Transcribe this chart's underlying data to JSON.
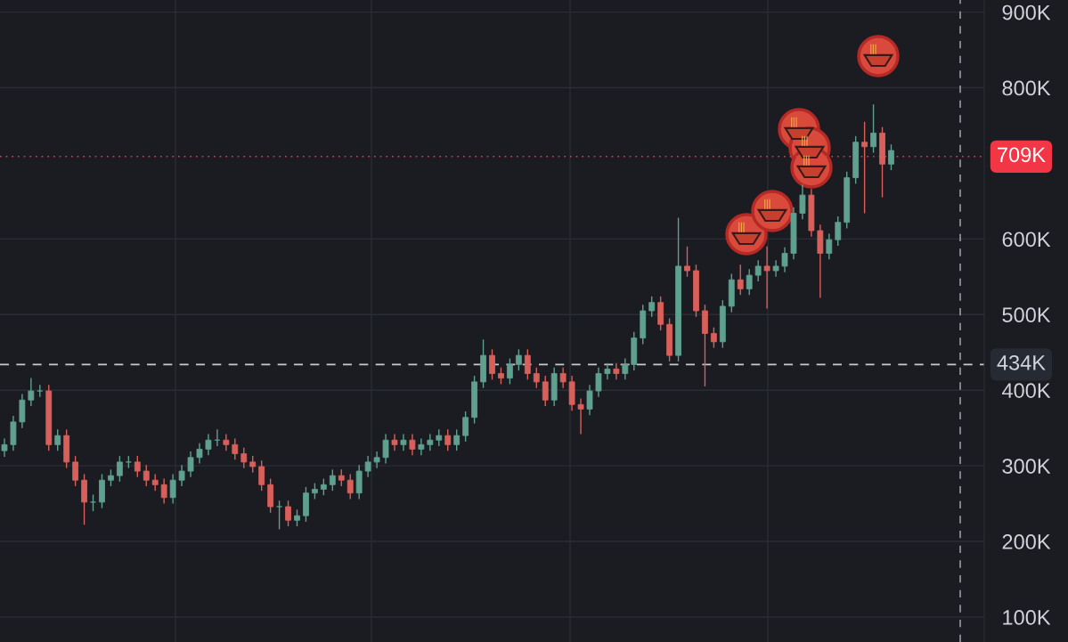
{
  "chart_data": {
    "type": "candlestick",
    "categories": [
      null,
      null,
      null,
      null,
      null,
      null,
      null,
      null,
      null,
      null,
      null,
      null,
      null,
      null,
      null,
      null,
      null,
      null,
      null,
      null,
      null,
      null,
      null,
      null,
      null,
      null,
      null,
      null,
      null,
      null,
      null,
      null,
      null,
      null,
      null,
      null,
      null,
      null,
      null,
      null,
      null,
      null,
      null,
      null,
      null,
      null,
      null,
      null,
      null,
      null,
      null,
      null,
      null,
      null,
      null,
      null,
      null,
      null,
      null,
      null,
      null,
      null,
      null,
      null,
      null,
      null,
      null,
      null,
      null,
      null,
      null,
      null,
      null,
      null,
      null,
      null,
      null,
      null,
      null,
      null,
      null,
      null,
      null,
      null,
      null,
      null,
      null,
      null,
      null,
      null,
      null,
      null,
      null,
      null,
      null,
      null,
      null,
      null,
      null,
      null,
      null,
      null,
      null,
      null,
      null,
      null,
      null,
      null,
      null,
      null,
      null
    ],
    "ohlc": [
      [
        320,
        336,
        312,
        328
      ],
      [
        328,
        366,
        320,
        358
      ],
      [
        358,
        395,
        350,
        387
      ],
      [
        387,
        416,
        379,
        399
      ],
      [
        399,
        407,
        391,
        399
      ],
      [
        399,
        407,
        320,
        328
      ],
      [
        328,
        348,
        320,
        340
      ],
      [
        340,
        348,
        297,
        305
      ],
      [
        305,
        313,
        273,
        281
      ],
      [
        281,
        289,
        222,
        252
      ],
      [
        252,
        262,
        240,
        252
      ],
      [
        252,
        289,
        244,
        281
      ],
      [
        281,
        295,
        273,
        287
      ],
      [
        287,
        313,
        279,
        305
      ],
      [
        305,
        313,
        297,
        305
      ],
      [
        305,
        313,
        285,
        293
      ],
      [
        293,
        301,
        273,
        281
      ],
      [
        281,
        289,
        267,
        275
      ],
      [
        275,
        283,
        250,
        258
      ],
      [
        258,
        289,
        250,
        281
      ],
      [
        281,
        301,
        273,
        293
      ],
      [
        293,
        319,
        285,
        311
      ],
      [
        311,
        330,
        303,
        322
      ],
      [
        322,
        342,
        314,
        334
      ],
      [
        334,
        348,
        326,
        334
      ],
      [
        334,
        342,
        320,
        328
      ],
      [
        328,
        336,
        308,
        316
      ],
      [
        316,
        324,
        297,
        305
      ],
      [
        305,
        313,
        291,
        299
      ],
      [
        299,
        307,
        267,
        275
      ],
      [
        275,
        283,
        238,
        246
      ],
      [
        246,
        254,
        216,
        246
      ],
      [
        246,
        254,
        220,
        228
      ],
      [
        228,
        242,
        220,
        234
      ],
      [
        234,
        272,
        226,
        264
      ],
      [
        264,
        277,
        256,
        269
      ],
      [
        269,
        283,
        261,
        275
      ],
      [
        275,
        295,
        267,
        287
      ],
      [
        287,
        295,
        273,
        281
      ],
      [
        281,
        289,
        256,
        264
      ],
      [
        264,
        301,
        256,
        293
      ],
      [
        293,
        313,
        285,
        305
      ],
      [
        305,
        319,
        297,
        311
      ],
      [
        311,
        342,
        303,
        334
      ],
      [
        334,
        342,
        320,
        328
      ],
      [
        328,
        342,
        320,
        334
      ],
      [
        334,
        342,
        314,
        322
      ],
      [
        322,
        336,
        314,
        328
      ],
      [
        328,
        342,
        320,
        334
      ],
      [
        334,
        348,
        326,
        340
      ],
      [
        340,
        348,
        320,
        328
      ],
      [
        328,
        348,
        320,
        340
      ],
      [
        340,
        372,
        332,
        364
      ],
      [
        364,
        419,
        356,
        411
      ],
      [
        411,
        467,
        403,
        446
      ],
      [
        446,
        454,
        414,
        422
      ],
      [
        422,
        430,
        408,
        416
      ],
      [
        416,
        442,
        408,
        434
      ],
      [
        434,
        454,
        426,
        446
      ],
      [
        446,
        454,
        414,
        422
      ],
      [
        422,
        430,
        403,
        411
      ],
      [
        411,
        419,
        379,
        387
      ],
      [
        387,
        430,
        379,
        422
      ],
      [
        422,
        430,
        403,
        411
      ],
      [
        411,
        419,
        373,
        381
      ],
      [
        381,
        389,
        342,
        375
      ],
      [
        375,
        407,
        367,
        399
      ],
      [
        399,
        430,
        391,
        422
      ],
      [
        422,
        436,
        414,
        428
      ],
      [
        428,
        436,
        414,
        422
      ],
      [
        422,
        442,
        414,
        434
      ],
      [
        434,
        477,
        426,
        469
      ],
      [
        469,
        513,
        461,
        505
      ],
      [
        505,
        524,
        497,
        516
      ],
      [
        516,
        524,
        479,
        487
      ],
      [
        487,
        495,
        438,
        446
      ],
      [
        446,
        628,
        438,
        564
      ],
      [
        564,
        590,
        550,
        558
      ],
      [
        558,
        566,
        497,
        505
      ],
      [
        505,
        513,
        405,
        475
      ],
      [
        475,
        483,
        456,
        464
      ],
      [
        464,
        519,
        456,
        511
      ],
      [
        511,
        554,
        503,
        546
      ],
      [
        546,
        566,
        526,
        534
      ],
      [
        534,
        560,
        526,
        552
      ],
      [
        552,
        572,
        544,
        564
      ],
      [
        564,
        590,
        508,
        558
      ],
      [
        558,
        572,
        550,
        564
      ],
      [
        564,
        589,
        556,
        581
      ],
      [
        581,
        642,
        573,
        634
      ],
      [
        634,
        672,
        626,
        658
      ],
      [
        658,
        666,
        603,
        611
      ],
      [
        611,
        619,
        522,
        581
      ],
      [
        581,
        607,
        573,
        599
      ],
      [
        599,
        630,
        591,
        622
      ],
      [
        622,
        689,
        614,
        681
      ],
      [
        681,
        736,
        673,
        728
      ],
      [
        728,
        755,
        634,
        722
      ],
      [
        722,
        778,
        714,
        740
      ],
      [
        740,
        748,
        655,
        699
      ],
      [
        699,
        725,
        691,
        717
      ],
      null,
      null,
      null,
      null,
      null,
      null,
      null,
      null,
      null,
      null
    ],
    "ylim": [
      67,
      916
    ],
    "yticks": [
      {
        "value": 100,
        "label": "100K"
      },
      {
        "value": 200,
        "label": "200K"
      },
      {
        "value": 300,
        "label": "300K"
      },
      {
        "value": 400,
        "label": "400K"
      },
      {
        "value": 500,
        "label": "500K"
      },
      {
        "value": 600,
        "label": "600K"
      },
      {
        "value": 800,
        "label": "800K"
      },
      {
        "value": 900,
        "label": "900K"
      }
    ],
    "tick_labels": "y",
    "grid": "y",
    "ref_lines": [
      {
        "axis": "y",
        "value": 709,
        "label": "709K",
        "color": "#f23645",
        "line_style": "dotted"
      },
      {
        "axis": "y",
        "value": 434,
        "label": "434K",
        "color": "#c8c9cc",
        "line_style": "dashed"
      }
    ]
  }
}
